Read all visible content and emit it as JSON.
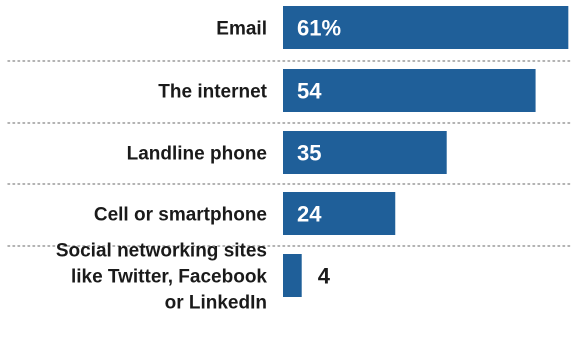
{
  "chart_data": {
    "type": "bar",
    "orientation": "horizontal",
    "categories": [
      [
        "Email"
      ],
      [
        "The internet"
      ],
      [
        "Landline phone"
      ],
      [
        "Cell or smartphone"
      ],
      [
        "Social networking sites",
        "like Twitter, Facebook",
        "or LinkedIn"
      ]
    ],
    "values": [
      61,
      54,
      35,
      24,
      4
    ],
    "value_labels": [
      "61%",
      "54",
      "35",
      "24",
      "4"
    ],
    "xlim": [
      0,
      62
    ],
    "grid": false,
    "legend": "none",
    "title": "",
    "xlabel": "",
    "ylabel": "",
    "colors": {
      "bar": "#1f5f99",
      "label_inside": "#ffffff",
      "label_outside": "#1a1a1a",
      "separator": "#9a9a9a"
    }
  }
}
